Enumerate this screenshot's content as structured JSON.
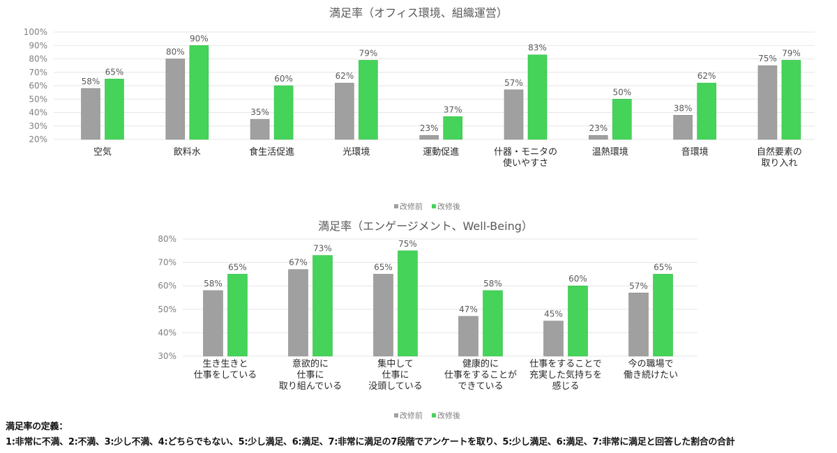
{
  "colors": {
    "before": "#a0a0a0",
    "after": "#46d35a",
    "grid": "#e6e6e6"
  },
  "chart_data": [
    {
      "type": "bar",
      "title": "満足率（オフィス環境、組織運営）",
      "categories": [
        [
          "空気"
        ],
        [
          "飲料水"
        ],
        [
          "食生活促進"
        ],
        [
          "光環境"
        ],
        [
          "運動促進"
        ],
        [
          "什器・モニタの",
          "使いやすさ"
        ],
        [
          "温熱環境"
        ],
        [
          "音環境"
        ],
        [
          "自然要素の",
          "取り入れ"
        ]
      ],
      "series": [
        {
          "name": "改修前",
          "values": [
            58,
            80,
            35,
            62,
            23,
            57,
            23,
            38,
            75
          ]
        },
        {
          "name": "改修後",
          "values": [
            65,
            90,
            60,
            79,
            37,
            83,
            50,
            62,
            79
          ]
        }
      ],
      "ylim": [
        20,
        100
      ],
      "yticks": [
        20,
        30,
        40,
        50,
        60,
        70,
        80,
        90,
        100
      ],
      "ytick_suffix": "%",
      "grid": true,
      "legend": "bottom-center",
      "xlabel": "",
      "ylabel": ""
    },
    {
      "type": "bar",
      "title": "満足率（エンゲージメント、Well-Being）",
      "categories": [
        [
          "生き生きと",
          "仕事をしている"
        ],
        [
          "意欲的に",
          "仕事に",
          "取り組んでいる"
        ],
        [
          "集中して",
          "仕事に",
          "没頭している"
        ],
        [
          "健康的に",
          "仕事をすることが",
          "できている"
        ],
        [
          "仕事をすることで",
          "充実した気持ちを",
          "感じる"
        ],
        [
          "今の職場で",
          "働き続けたい"
        ]
      ],
      "series": [
        {
          "name": "改修前",
          "values": [
            58,
            67,
            65,
            47,
            45,
            57
          ]
        },
        {
          "name": "改修後",
          "values": [
            65,
            73,
            75,
            58,
            60,
            65
          ]
        }
      ],
      "ylim": [
        30,
        80
      ],
      "yticks": [
        30,
        40,
        50,
        60,
        70,
        80
      ],
      "ytick_suffix": "%",
      "grid": true,
      "legend": "bottom-center",
      "xlabel": "",
      "ylabel": ""
    }
  ],
  "footnote": {
    "heading": "満足率の定義：",
    "body": "1:非常に不満、2:不満、3:少し不満、4:どちらでもない、5:少し満足、6:満足、7:非常に満足の7段階でアンケートを取り、5:少し満足、6:満足、7:非常に満足と回答した割合の合計"
  }
}
